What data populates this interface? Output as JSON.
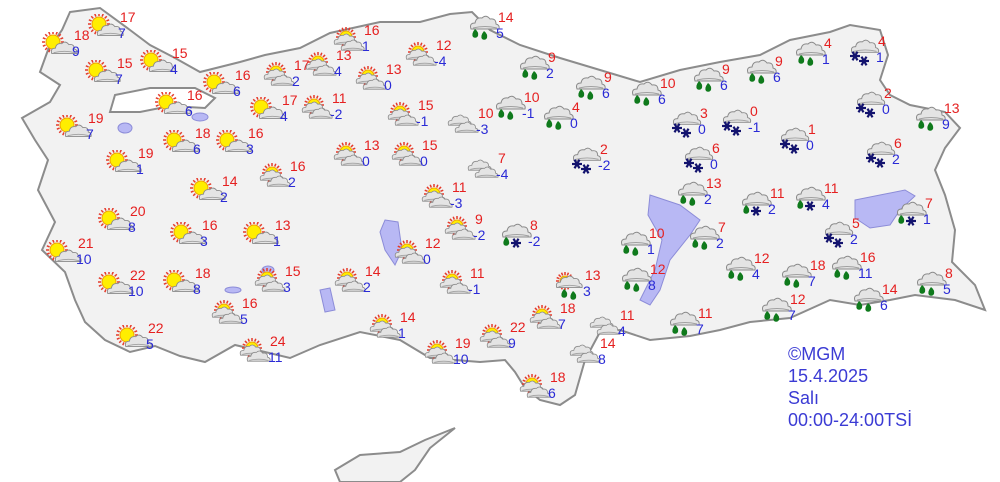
{
  "legend": {
    "copyright": "©MGM",
    "date": "15.4.2025",
    "day": "Salı",
    "period": "00:00-24:00TSİ"
  },
  "colors": {
    "max_temp": "#e52020",
    "min_temp": "#2a2ad6",
    "land": "#f2f2f2",
    "lake": "#b8b8f4",
    "border": "#8c8c8c"
  },
  "cities": [
    {
      "icon": "sunny",
      "max": "18",
      "min": "9"
    },
    {
      "icon": "sunny",
      "max": "17",
      "min": "7"
    },
    {
      "icon": "sunny",
      "max": "15",
      "min": "7"
    },
    {
      "icon": "sunny",
      "max": "15",
      "min": "4"
    },
    {
      "icon": "sunny",
      "max": "16",
      "min": "6"
    },
    {
      "icon": "sunny",
      "max": "16",
      "min": "6"
    },
    {
      "icon": "sunny",
      "max": "19",
      "min": "7"
    },
    {
      "icon": "sunny",
      "max": "18",
      "min": "6"
    },
    {
      "icon": "sunny",
      "max": "16",
      "min": "3"
    },
    {
      "icon": "sunny",
      "max": "19",
      "min": "1"
    },
    {
      "icon": "sunny",
      "max": "17",
      "min": "4"
    },
    {
      "icon": "partly-cloudy",
      "max": "17",
      "min": "2"
    },
    {
      "icon": "partly-cloudy",
      "max": "16",
      "min": "2"
    },
    {
      "icon": "sunny",
      "max": "14",
      "min": "2"
    },
    {
      "icon": "sunny",
      "max": "20",
      "min": "8"
    },
    {
      "icon": "sunny",
      "max": "16",
      "min": "3"
    },
    {
      "icon": "sunny",
      "max": "13",
      "min": "1"
    },
    {
      "icon": "sunny",
      "max": "21",
      "min": "10"
    },
    {
      "icon": "sunny",
      "max": "22",
      "min": "10"
    },
    {
      "icon": "sunny",
      "max": "18",
      "min": "8"
    },
    {
      "icon": "partly-cloudy",
      "max": "15",
      "min": "3"
    },
    {
      "icon": "sunny",
      "max": "22",
      "min": "5"
    },
    {
      "icon": "partly-cloudy",
      "max": "16",
      "min": "5"
    },
    {
      "icon": "partly-cloudy",
      "max": "24",
      "min": "11"
    },
    {
      "icon": "partly-cloudy",
      "max": "13",
      "min": "4"
    },
    {
      "icon": "partly-cloudy",
      "max": "16",
      "min": "1"
    },
    {
      "icon": "partly-cloudy",
      "max": "13",
      "min": "0"
    },
    {
      "icon": "partly-cloudy",
      "max": "12",
      "min": "-4"
    },
    {
      "icon": "partly-cloudy",
      "max": "11",
      "min": "-2"
    },
    {
      "icon": "partly-cloudy",
      "max": "15",
      "min": "-1"
    },
    {
      "icon": "partly-cloudy",
      "max": "13",
      "min": "0"
    },
    {
      "icon": "partly-cloudy",
      "max": "15",
      "min": "0"
    },
    {
      "icon": "cloudy",
      "max": "10",
      "min": "-3"
    },
    {
      "icon": "cloudy",
      "max": "7",
      "min": "-4"
    },
    {
      "icon": "partly-cloudy",
      "max": "11",
      "min": "-3"
    },
    {
      "icon": "partly-cloudy",
      "max": "9",
      "min": "-2"
    },
    {
      "icon": "partly-cloudy",
      "max": "12",
      "min": "0"
    },
    {
      "icon": "rain",
      "max": "14",
      "min": "5"
    },
    {
      "icon": "rain",
      "max": "9",
      "min": "2"
    },
    {
      "icon": "rain",
      "max": "9",
      "min": "6"
    },
    {
      "icon": "rain",
      "max": "10",
      "min": "6"
    },
    {
      "icon": "rain",
      "max": "10",
      "min": "-1"
    },
    {
      "icon": "rain",
      "max": "4",
      "min": "0"
    },
    {
      "icon": "snow",
      "max": "2",
      "min": "-2"
    },
    {
      "icon": "rain-snow",
      "max": "8",
      "min": "-2"
    },
    {
      "icon": "partly-cloudy",
      "max": "14",
      "min": "2"
    },
    {
      "icon": "partly-cloudy",
      "max": "11",
      "min": "-1"
    },
    {
      "icon": "partly-cloudy",
      "max": "14",
      "min": "1"
    },
    {
      "icon": "partly-cloudy",
      "max": "19",
      "min": "10"
    },
    {
      "icon": "partly-cloudy",
      "max": "22",
      "min": "9"
    },
    {
      "icon": "partly-cloudy",
      "max": "18",
      "min": "7"
    },
    {
      "icon": "partly-cloudy-rain",
      "max": "13",
      "min": "3"
    },
    {
      "icon": "partly-cloudy",
      "max": "18",
      "min": "6"
    },
    {
      "icon": "cloudy",
      "max": "11",
      "min": "4"
    },
    {
      "icon": "cloudy",
      "max": "14",
      "min": "8"
    },
    {
      "icon": "rain",
      "max": "10",
      "min": "1"
    },
    {
      "icon": "rain",
      "max": "12",
      "min": "8"
    },
    {
      "icon": "rain",
      "max": "11",
      "min": "7"
    },
    {
      "icon": "rain",
      "max": "9",
      "min": "6"
    },
    {
      "icon": "rain",
      "max": "9",
      "min": "6"
    },
    {
      "icon": "rain",
      "max": "4",
      "min": "1"
    },
    {
      "icon": "snow",
      "max": "4",
      "min": "1"
    },
    {
      "icon": "snow",
      "max": "3",
      "min": "0"
    },
    {
      "icon": "snow",
      "max": "0",
      "min": "-1"
    },
    {
      "icon": "snow",
      "max": "1",
      "min": "0"
    },
    {
      "icon": "snow",
      "max": "6",
      "min": "0"
    },
    {
      "icon": "snow",
      "max": "2",
      "min": "0"
    },
    {
      "icon": "rain",
      "max": "13",
      "min": "9"
    },
    {
      "icon": "snow",
      "max": "6",
      "min": "2"
    },
    {
      "icon": "rain",
      "max": "13",
      "min": "2"
    },
    {
      "icon": "rain",
      "max": "7",
      "min": "2"
    },
    {
      "icon": "rain-snow",
      "max": "11",
      "min": "2"
    },
    {
      "icon": "rain-snow",
      "max": "11",
      "min": "4"
    },
    {
      "icon": "rain-snow",
      "max": "7",
      "min": "1"
    },
    {
      "icon": "snow",
      "max": "5",
      "min": "2"
    },
    {
      "icon": "rain",
      "max": "12",
      "min": "4"
    },
    {
      "icon": "rain",
      "max": "18",
      "min": "7"
    },
    {
      "icon": "rain",
      "max": "16",
      "min": "11"
    },
    {
      "icon": "rain",
      "max": "8",
      "min": "5"
    },
    {
      "icon": "rain",
      "max": "14",
      "min": "6"
    },
    {
      "icon": "rain",
      "max": "12",
      "min": "7"
    }
  ]
}
